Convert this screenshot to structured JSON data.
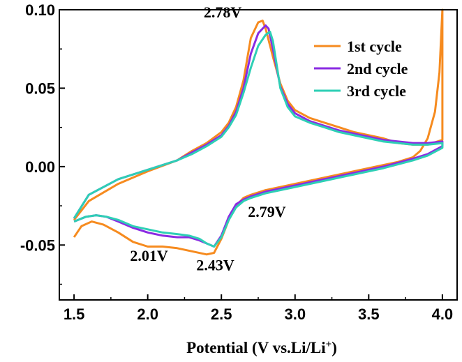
{
  "chart_data": {
    "type": "line",
    "title": "",
    "xlabel": "Potential (V vs.Li/Li",
    "xlabel_superscript": "+",
    "xlabel_suffix": ")",
    "ylabel": "",
    "xlim": [
      1.4,
      4.1
    ],
    "ylim": [
      -0.085,
      0.1
    ],
    "xticks": [
      1.5,
      2.0,
      2.5,
      3.0,
      3.5,
      4.0
    ],
    "xtick_labels": [
      "1.5",
      "2.0",
      "2.5",
      "3.0",
      "3.5",
      "4.0"
    ],
    "yticks": [
      -0.05,
      0.0,
      0.05,
      0.1
    ],
    "ytick_labels": [
      "-0.05",
      "0.00",
      "0.05",
      "0.10"
    ],
    "grid": false,
    "legend_position": "top-right",
    "annotations": [
      {
        "text": "2.78V",
        "x": 2.38,
        "y": 0.095
      },
      {
        "text": "2.79V",
        "x": 2.68,
        "y": -0.032
      },
      {
        "text": "2.01V",
        "x": 1.88,
        "y": -0.06
      },
      {
        "text": "2.43V",
        "x": 2.33,
        "y": -0.066
      }
    ],
    "series": [
      {
        "name": "1st cycle",
        "color": "#f68b1f",
        "points": [
          [
            1.5,
            -0.045
          ],
          [
            1.55,
            -0.038
          ],
          [
            1.62,
            -0.035
          ],
          [
            1.7,
            -0.037
          ],
          [
            1.8,
            -0.042
          ],
          [
            1.9,
            -0.048
          ],
          [
            2.0,
            -0.051
          ],
          [
            2.1,
            -0.051
          ],
          [
            2.2,
            -0.052
          ],
          [
            2.3,
            -0.054
          ],
          [
            2.4,
            -0.056
          ],
          [
            2.45,
            -0.055
          ],
          [
            2.5,
            -0.046
          ],
          [
            2.55,
            -0.034
          ],
          [
            2.6,
            -0.025
          ],
          [
            2.65,
            -0.02
          ],
          [
            2.7,
            -0.018
          ],
          [
            2.8,
            -0.015
          ],
          [
            3.0,
            -0.011
          ],
          [
            3.2,
            -0.007
          ],
          [
            3.4,
            -0.003
          ],
          [
            3.6,
            0.001
          ],
          [
            3.7,
            0.003
          ],
          [
            3.8,
            0.006
          ],
          [
            3.85,
            0.01
          ],
          [
            3.9,
            0.018
          ],
          [
            3.95,
            0.035
          ],
          [
            3.98,
            0.06
          ],
          [
            4.0,
            0.1
          ],
          [
            4.0,
            0.017
          ],
          [
            3.9,
            0.014
          ],
          [
            3.8,
            0.014
          ],
          [
            3.7,
            0.015
          ],
          [
            3.6,
            0.018
          ],
          [
            3.5,
            0.02
          ],
          [
            3.4,
            0.022
          ],
          [
            3.3,
            0.025
          ],
          [
            3.2,
            0.028
          ],
          [
            3.1,
            0.031
          ],
          [
            3.0,
            0.036
          ],
          [
            2.95,
            0.042
          ],
          [
            2.9,
            0.053
          ],
          [
            2.85,
            0.07
          ],
          [
            2.8,
            0.088
          ],
          [
            2.78,
            0.093
          ],
          [
            2.75,
            0.092
          ],
          [
            2.7,
            0.082
          ],
          [
            2.65,
            0.055
          ],
          [
            2.6,
            0.038
          ],
          [
            2.55,
            0.028
          ],
          [
            2.5,
            0.022
          ],
          [
            2.4,
            0.015
          ],
          [
            2.3,
            0.01
          ],
          [
            2.2,
            0.004
          ],
          [
            2.0,
            -0.003
          ],
          [
            1.8,
            -0.011
          ],
          [
            1.6,
            -0.022
          ],
          [
            1.5,
            -0.034
          ]
        ]
      },
      {
        "name": "2nd cycle",
        "color": "#8a2be2",
        "points": [
          [
            1.5,
            -0.035
          ],
          [
            1.58,
            -0.032
          ],
          [
            1.65,
            -0.031
          ],
          [
            1.72,
            -0.032
          ],
          [
            1.8,
            -0.035
          ],
          [
            1.9,
            -0.039
          ],
          [
            2.0,
            -0.042
          ],
          [
            2.1,
            -0.044
          ],
          [
            2.2,
            -0.045
          ],
          [
            2.28,
            -0.045
          ],
          [
            2.35,
            -0.047
          ],
          [
            2.4,
            -0.049
          ],
          [
            2.45,
            -0.051
          ],
          [
            2.5,
            -0.044
          ],
          [
            2.55,
            -0.032
          ],
          [
            2.6,
            -0.024
          ],
          [
            2.65,
            -0.021
          ],
          [
            2.7,
            -0.019
          ],
          [
            2.8,
            -0.016
          ],
          [
            3.0,
            -0.012
          ],
          [
            3.2,
            -0.008
          ],
          [
            3.4,
            -0.004
          ],
          [
            3.6,
            0.0
          ],
          [
            3.8,
            0.005
          ],
          [
            3.9,
            0.008
          ],
          [
            4.0,
            0.013
          ],
          [
            4.0,
            0.016
          ],
          [
            3.9,
            0.015
          ],
          [
            3.8,
            0.015
          ],
          [
            3.7,
            0.016
          ],
          [
            3.6,
            0.017
          ],
          [
            3.5,
            0.019
          ],
          [
            3.4,
            0.021
          ],
          [
            3.3,
            0.023
          ],
          [
            3.2,
            0.026
          ],
          [
            3.1,
            0.029
          ],
          [
            3.0,
            0.034
          ],
          [
            2.95,
            0.04
          ],
          [
            2.9,
            0.051
          ],
          [
            2.85,
            0.075
          ],
          [
            2.82,
            0.088
          ],
          [
            2.8,
            0.09
          ],
          [
            2.75,
            0.085
          ],
          [
            2.7,
            0.072
          ],
          [
            2.65,
            0.05
          ],
          [
            2.6,
            0.035
          ],
          [
            2.55,
            0.026
          ],
          [
            2.5,
            0.02
          ],
          [
            2.4,
            0.014
          ],
          [
            2.3,
            0.009
          ],
          [
            2.2,
            0.004
          ],
          [
            2.0,
            -0.002
          ],
          [
            1.8,
            -0.008
          ],
          [
            1.6,
            -0.018
          ],
          [
            1.5,
            -0.033
          ]
        ]
      },
      {
        "name": "3rd cycle",
        "color": "#2ecfb5",
        "points": [
          [
            1.5,
            -0.035
          ],
          [
            1.58,
            -0.032
          ],
          [
            1.65,
            -0.031
          ],
          [
            1.72,
            -0.032
          ],
          [
            1.8,
            -0.034
          ],
          [
            1.9,
            -0.038
          ],
          [
            2.0,
            -0.04
          ],
          [
            2.1,
            -0.042
          ],
          [
            2.2,
            -0.043
          ],
          [
            2.28,
            -0.044
          ],
          [
            2.35,
            -0.046
          ],
          [
            2.4,
            -0.049
          ],
          [
            2.45,
            -0.051
          ],
          [
            2.5,
            -0.045
          ],
          [
            2.55,
            -0.034
          ],
          [
            2.6,
            -0.026
          ],
          [
            2.65,
            -0.022
          ],
          [
            2.7,
            -0.02
          ],
          [
            2.8,
            -0.017
          ],
          [
            3.0,
            -0.013
          ],
          [
            3.2,
            -0.009
          ],
          [
            3.4,
            -0.005
          ],
          [
            3.6,
            -0.001
          ],
          [
            3.8,
            0.004
          ],
          [
            3.9,
            0.007
          ],
          [
            4.0,
            0.012
          ],
          [
            4.0,
            0.015
          ],
          [
            3.9,
            0.014
          ],
          [
            3.8,
            0.014
          ],
          [
            3.7,
            0.015
          ],
          [
            3.6,
            0.016
          ],
          [
            3.5,
            0.018
          ],
          [
            3.4,
            0.02
          ],
          [
            3.3,
            0.022
          ],
          [
            3.2,
            0.025
          ],
          [
            3.1,
            0.028
          ],
          [
            3.0,
            0.032
          ],
          [
            2.95,
            0.038
          ],
          [
            2.9,
            0.05
          ],
          [
            2.85,
            0.08
          ],
          [
            2.83,
            0.086
          ],
          [
            2.8,
            0.084
          ],
          [
            2.75,
            0.077
          ],
          [
            2.7,
            0.063
          ],
          [
            2.65,
            0.047
          ],
          [
            2.6,
            0.033
          ],
          [
            2.55,
            0.025
          ],
          [
            2.5,
            0.019
          ],
          [
            2.4,
            0.013
          ],
          [
            2.3,
            0.008
          ],
          [
            2.2,
            0.004
          ],
          [
            2.0,
            -0.002
          ],
          [
            1.8,
            -0.008
          ],
          [
            1.6,
            -0.018
          ],
          [
            1.5,
            -0.033
          ]
        ]
      }
    ]
  }
}
